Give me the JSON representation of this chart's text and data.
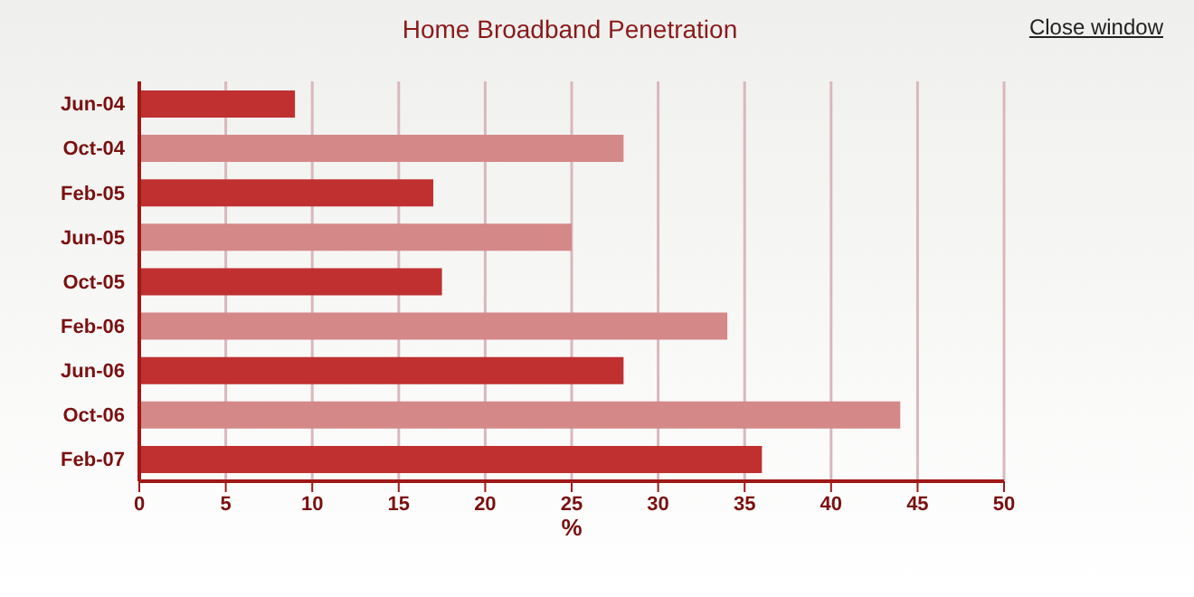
{
  "chart_data": {
    "type": "bar",
    "orientation": "horizontal",
    "title": "Home Broadband Penetration",
    "xlabel": "%",
    "categories": [
      "Jun-04",
      "Oct-04",
      "Feb-05",
      "Jun-05",
      "Oct-05",
      "Feb-06",
      "Jun-06",
      "Oct-06",
      "Feb-07"
    ],
    "values": [
      9,
      28,
      17,
      25,
      17.5,
      34,
      28,
      44,
      36
    ],
    "colors": [
      "#c03030",
      "#d48888",
      "#c03030",
      "#d48888",
      "#c03030",
      "#d48888",
      "#c03030",
      "#d48888",
      "#c03030"
    ],
    "xlim": [
      0,
      50
    ],
    "xticks": [
      0,
      5,
      10,
      15,
      20,
      25,
      30,
      35,
      40,
      45,
      50
    ],
    "grid": "x",
    "annotations": [
      "Close window"
    ]
  }
}
